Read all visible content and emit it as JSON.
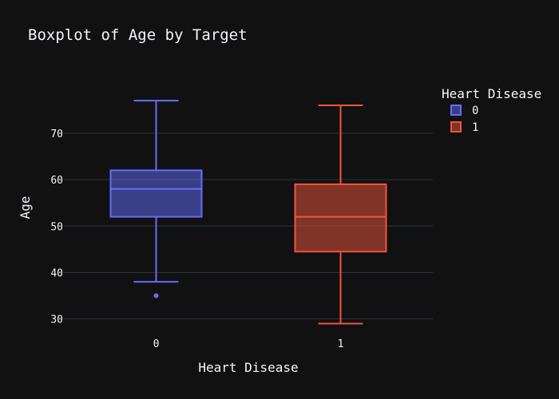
{
  "chart_data": {
    "type": "box",
    "title": "Boxplot of Age by Target",
    "xlabel": "Heart Disease",
    "ylabel": "Age",
    "categories": [
      "0",
      "1"
    ],
    "yticks": [
      30,
      40,
      50,
      60,
      70
    ],
    "ylim": [
      26.5,
      81.5
    ],
    "grid": true,
    "legend_title": "Heart Disease",
    "legend_position": "top-right",
    "series": [
      {
        "name": "0",
        "color": "#636efa",
        "min": 38,
        "q1": 52,
        "median": 58,
        "q3": 62,
        "max": 77,
        "outliers": [
          35
        ]
      },
      {
        "name": "1",
        "color": "#ef553b",
        "min": 29,
        "q1": 44.5,
        "median": 52,
        "q3": 59,
        "max": 76,
        "outliers": []
      }
    ]
  }
}
